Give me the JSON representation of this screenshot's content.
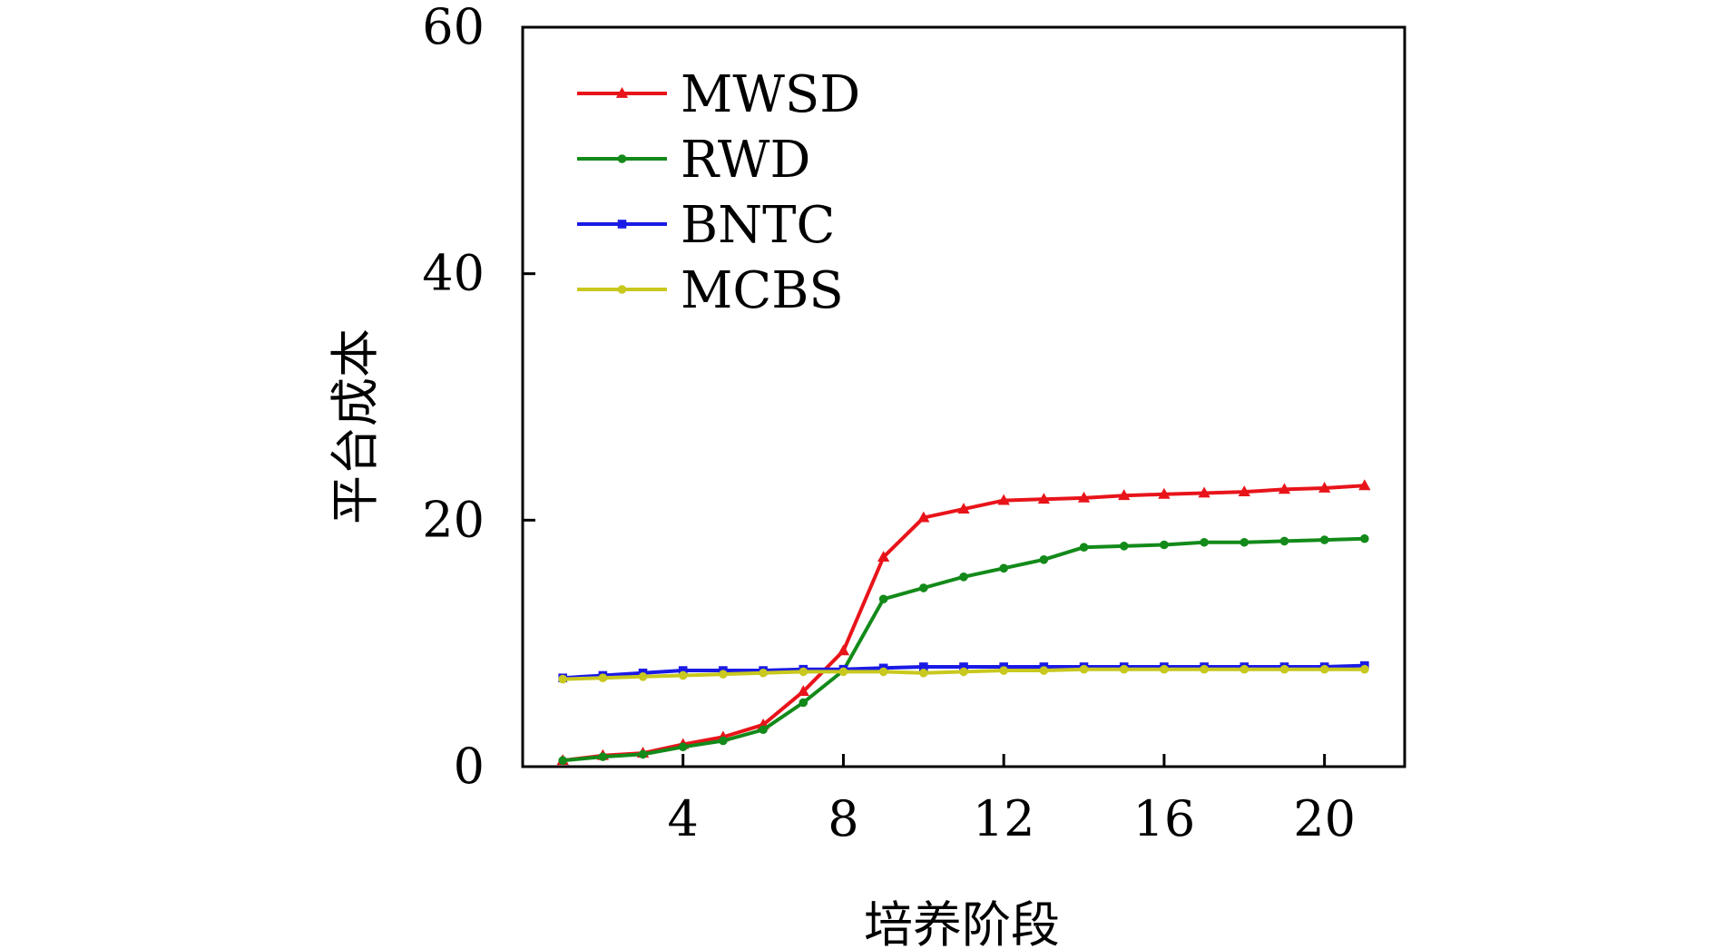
{
  "chart_data": {
    "type": "line",
    "xlabel": "培养阶段",
    "ylabel": "平台成本",
    "xlim": [
      0,
      22
    ],
    "ylim": [
      0,
      60
    ],
    "xticks": [
      4,
      8,
      12,
      16,
      20
    ],
    "yticks": [
      0,
      20,
      40,
      60
    ],
    "grid": false,
    "legend_position": "top-left",
    "x": [
      1,
      2,
      3,
      4,
      5,
      6,
      7,
      8,
      9,
      10,
      11,
      12,
      13,
      14,
      15,
      16,
      17,
      18,
      19,
      20,
      21
    ],
    "series": [
      {
        "name": "MWSD",
        "color": "#e8141a",
        "marker": "triangle",
        "values": [
          0.5,
          0.9,
          1.1,
          1.8,
          2.4,
          3.4,
          6.1,
          9.4,
          17.0,
          20.2,
          20.9,
          21.6,
          21.7,
          21.8,
          22.0,
          22.1,
          22.2,
          22.3,
          22.5,
          22.6,
          22.8
        ]
      },
      {
        "name": "RWD",
        "color": "#138a1a",
        "marker": "circle",
        "values": [
          0.5,
          0.8,
          1.0,
          1.6,
          2.1,
          3.0,
          5.2,
          7.8,
          13.6,
          14.5,
          15.4,
          16.1,
          16.8,
          17.8,
          17.9,
          18.0,
          18.2,
          18.2,
          18.3,
          18.4,
          18.5
        ]
      },
      {
        "name": "BNTC",
        "color": "#1a1ae6",
        "marker": "square",
        "values": [
          7.2,
          7.4,
          7.6,
          7.8,
          7.8,
          7.8,
          7.9,
          7.9,
          8.0,
          8.1,
          8.1,
          8.1,
          8.1,
          8.1,
          8.1,
          8.1,
          8.1,
          8.1,
          8.1,
          8.1,
          8.2
        ]
      },
      {
        "name": "MCBS",
        "color": "#c8c81e",
        "marker": "circle",
        "values": [
          7.1,
          7.2,
          7.3,
          7.4,
          7.5,
          7.6,
          7.7,
          7.7,
          7.7,
          7.6,
          7.7,
          7.8,
          7.8,
          7.9,
          7.9,
          7.9,
          7.9,
          7.9,
          7.9,
          7.9,
          7.9
        ]
      }
    ]
  }
}
